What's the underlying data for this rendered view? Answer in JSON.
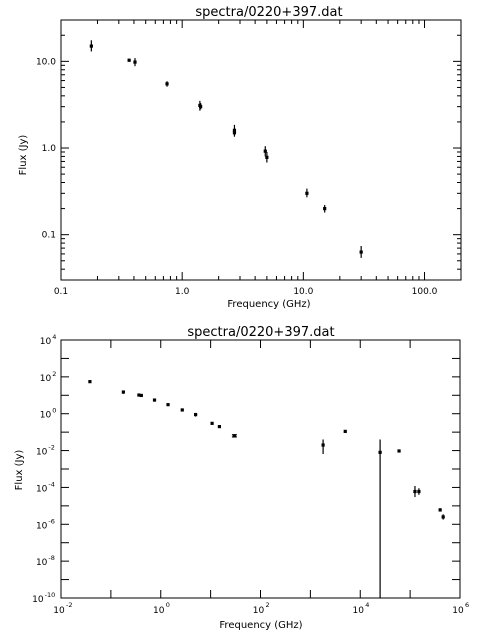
{
  "chart_data": [
    {
      "type": "scatter",
      "title": "spectra/0220+397.dat",
      "xlabel": "Frequency (GHz)",
      "ylabel": "Flux (Jy)",
      "xscale": "log",
      "yscale": "log",
      "xlim": [
        0.1,
        200
      ],
      "ylim": [
        0.03,
        30
      ],
      "xticklabels": [
        {
          "v": 0.1,
          "t": "0.1"
        },
        {
          "v": 1,
          "t": "1.0"
        },
        {
          "v": 10,
          "t": "10.0"
        },
        {
          "v": 100,
          "t": "100.0"
        }
      ],
      "yticklabels": [
        {
          "v": 0.1,
          "t": "0.1"
        },
        {
          "v": 1,
          "t": "1.0"
        },
        {
          "v": 10,
          "t": "10.0"
        }
      ],
      "grid": false,
      "points": [
        {
          "x": 0.178,
          "y": 15.0,
          "lo": 13.0,
          "hi": 17.5
        },
        {
          "x": 0.365,
          "y": 10.3,
          "lo": 9.9,
          "hi": 10.7
        },
        {
          "x": 0.408,
          "y": 9.8,
          "lo": 8.8,
          "hi": 10.9
        },
        {
          "x": 0.75,
          "y": 5.5,
          "lo": 5.1,
          "hi": 5.9
        },
        {
          "x": 1.4,
          "y": 3.1,
          "lo": 2.7,
          "hi": 3.5
        },
        {
          "x": 1.42,
          "y": 3.0,
          "lo": 2.8,
          "hi": 3.3
        },
        {
          "x": 2.7,
          "y": 1.6,
          "lo": 1.4,
          "hi": 1.85
        },
        {
          "x": 2.7,
          "y": 1.5,
          "lo": 1.35,
          "hi": 1.65
        },
        {
          "x": 4.85,
          "y": 0.92,
          "lo": 0.8,
          "hi": 1.05
        },
        {
          "x": 5.0,
          "y": 0.78,
          "lo": 0.68,
          "hi": 0.9
        },
        {
          "x": 10.7,
          "y": 0.3,
          "lo": 0.27,
          "hi": 0.34
        },
        {
          "x": 15.0,
          "y": 0.2,
          "lo": 0.18,
          "hi": 0.22
        },
        {
          "x": 30.0,
          "y": 0.063,
          "lo": 0.054,
          "hi": 0.074
        }
      ]
    },
    {
      "type": "scatter",
      "title": "spectra/0220+397.dat",
      "xlabel": "Frequency (GHz)",
      "ylabel": "Flux (Jy)",
      "xscale": "log",
      "yscale": "log",
      "xlim": [
        0.01,
        1000000
      ],
      "ylim": [
        1e-10,
        10000
      ],
      "xticks": [
        {
          "v": 0.01,
          "b": "10",
          "e": "-2"
        },
        {
          "v": 1,
          "b": "10",
          "e": "0"
        },
        {
          "v": 100,
          "b": "10",
          "e": "2"
        },
        {
          "v": 10000,
          "b": "10",
          "e": "4"
        },
        {
          "v": 1000000,
          "b": "10",
          "e": "6"
        }
      ],
      "yticks": [
        {
          "v": 1e-10,
          "b": "10",
          "e": "-10"
        },
        {
          "v": 1e-08,
          "b": "10",
          "e": "-8"
        },
        {
          "v": 1e-06,
          "b": "10",
          "e": "-6"
        },
        {
          "v": 0.0001,
          "b": "10",
          "e": "-4"
        },
        {
          "v": 0.01,
          "b": "10",
          "e": "-2"
        },
        {
          "v": 1,
          "b": "10",
          "e": "0"
        },
        {
          "v": 100,
          "b": "10",
          "e": "2"
        },
        {
          "v": 10000,
          "b": "10",
          "e": "4"
        }
      ],
      "grid": false,
      "points": [
        {
          "x": 0.038,
          "y": 55,
          "lo": 50,
          "hi": 60
        },
        {
          "x": 0.178,
          "y": 15,
          "lo": 12,
          "hi": 18
        },
        {
          "x": 0.365,
          "y": 10.3,
          "lo": 9.5,
          "hi": 11
        },
        {
          "x": 0.408,
          "y": 9.8,
          "lo": 8.5,
          "hi": 11
        },
        {
          "x": 0.75,
          "y": 5.5,
          "lo": 5,
          "hi": 6
        },
        {
          "x": 1.4,
          "y": 3.1,
          "lo": 2.8,
          "hi": 3.4
        },
        {
          "x": 2.7,
          "y": 1.6,
          "lo": 1.4,
          "hi": 1.8
        },
        {
          "x": 5.0,
          "y": 0.9,
          "lo": 0.7,
          "hi": 1.1
        },
        {
          "x": 10.7,
          "y": 0.3,
          "lo": 0.27,
          "hi": 0.34
        },
        {
          "x": 15.0,
          "y": 0.2,
          "lo": 0.18,
          "hi": 0.22
        },
        {
          "x": 30.0,
          "y": 0.063,
          "lo": 0.055,
          "hi": 0.072,
          "cap": true
        },
        {
          "x": 1800,
          "y": 0.02,
          "lo": 0.0065,
          "hi": 0.04
        },
        {
          "x": 5000,
          "y": 0.11,
          "lo": 0.1,
          "hi": 0.12
        },
        {
          "x": 25000,
          "y": 0.008,
          "lo": 1e-10,
          "hi": 0.04
        },
        {
          "x": 60000,
          "y": 0.0095,
          "lo": 0.008,
          "hi": 0.011
        },
        {
          "x": 125000,
          "y": 6e-05,
          "lo": 3e-05,
          "hi": 0.00012
        },
        {
          "x": 150000,
          "y": 6e-05,
          "lo": 4e-05,
          "hi": 9e-05
        },
        {
          "x": 400000,
          "y": 6e-06,
          "lo": 5e-06,
          "hi": 7.5e-06
        },
        {
          "x": 460000,
          "y": 2.5e-06,
          "lo": 1.8e-06,
          "hi": 3.5e-06
        }
      ]
    }
  ]
}
